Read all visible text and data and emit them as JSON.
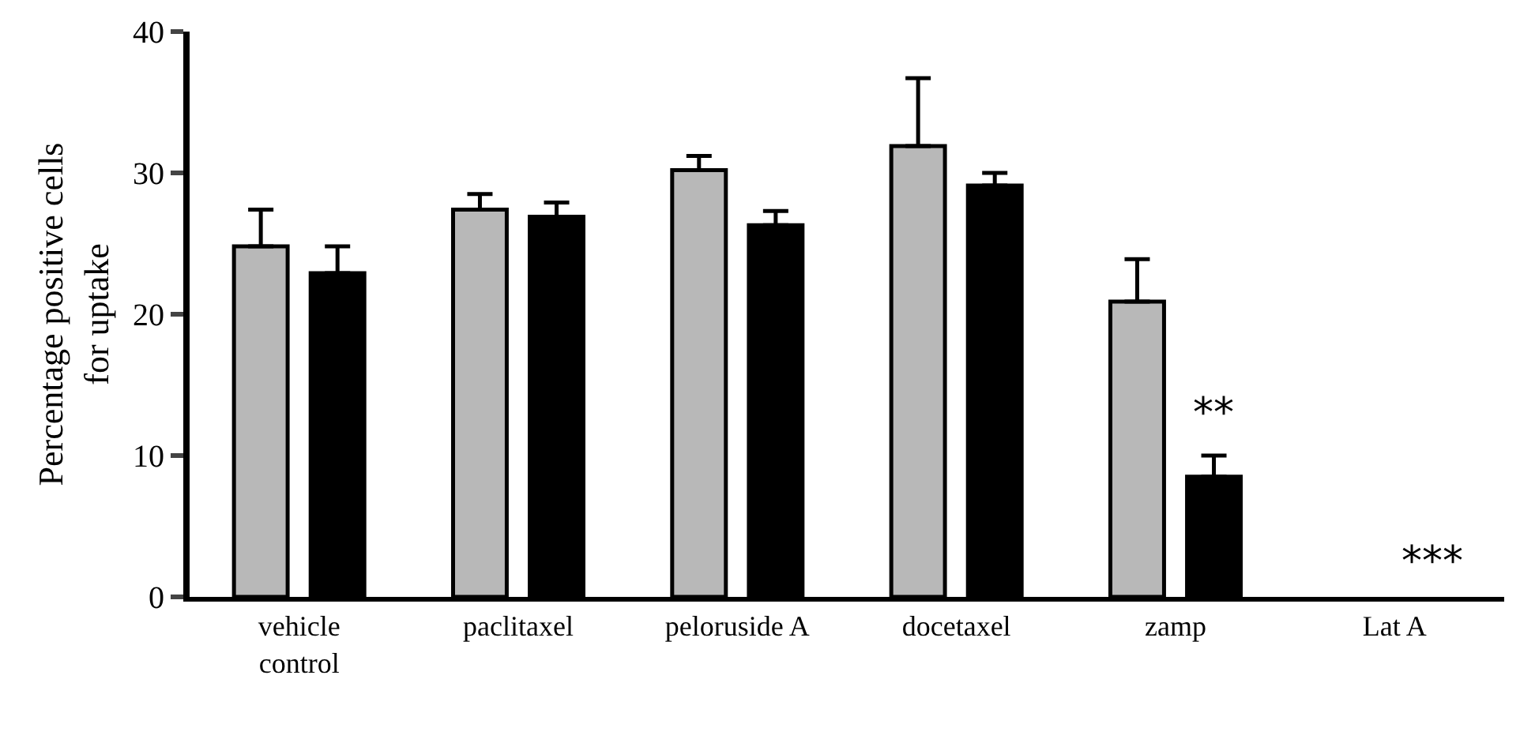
{
  "chart_data": {
    "type": "bar",
    "ylabel": "Percentage positive cells\nfor uptake",
    "categories": [
      "vehicle\ncontrol",
      "paclitaxel",
      "peloruside A",
      "docetaxel",
      "zamp",
      "Lat A"
    ],
    "series": [
      {
        "color": "#b8b8b8",
        "values": [
          24.8,
          27.4,
          30.2,
          31.9,
          20.9,
          null
        ],
        "errors": [
          [
            24.8,
            27.4
          ],
          [
            27.4,
            28.5
          ],
          [
            30.2,
            31.2
          ],
          [
            31.9,
            36.7
          ],
          [
            20.9,
            23.9
          ],
          null
        ]
      },
      {
        "color": "#000000",
        "values": [
          22.9,
          26.9,
          26.3,
          29.1,
          8.5,
          null
        ],
        "errors": [
          [
            22.9,
            24.8
          ],
          [
            26.9,
            27.9
          ],
          [
            26.3,
            27.3
          ],
          [
            29.1,
            30.0
          ],
          [
            8.5,
            10.0
          ],
          null
        ]
      }
    ],
    "ylim": [
      0,
      40
    ],
    "yticks": [
      0,
      10,
      20,
      30,
      40
    ],
    "grid": false,
    "annotations": [
      "**",
      "***"
    ]
  }
}
